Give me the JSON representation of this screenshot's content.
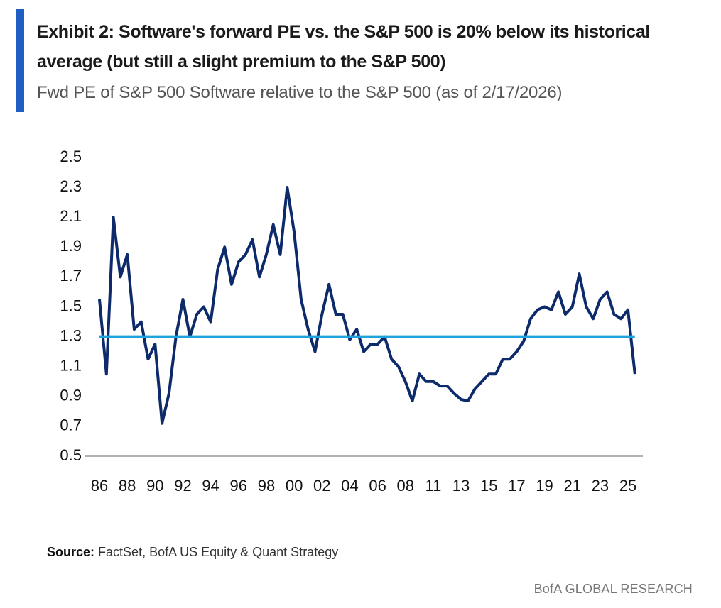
{
  "chart_data": {
    "type": "line",
    "title": "Exhibit 2: Software's forward PE vs. the S&P 500 is 20% below its historical average (but still a slight premium to the S&P 500)",
    "subtitle": "Fwd PE of S&P 500 Software relative to the S&P 500 (as of 2/17/2026)",
    "source_label": "Source:",
    "source": "FactSet, BofA US Equity & Quant Strategy",
    "branding": "BofA GLOBAL RESEARCH",
    "categories": [
      "86",
      null,
      null,
      null,
      "88",
      null,
      null,
      null,
      "90",
      null,
      null,
      null,
      "92",
      null,
      null,
      null,
      "94",
      null,
      null,
      null,
      "96",
      null,
      null,
      null,
      "98",
      null,
      null,
      null,
      "00",
      null,
      null,
      null,
      "02",
      null,
      null,
      null,
      "04",
      null,
      null,
      null,
      "06",
      null,
      null,
      null,
      "08",
      null,
      null,
      null,
      "11",
      null,
      null,
      null,
      "13",
      null,
      null,
      null,
      "15",
      null,
      null,
      null,
      "17",
      null,
      null,
      null,
      "19",
      null,
      null,
      null,
      "21",
      null,
      null,
      null,
      "23",
      null,
      null,
      null,
      "25",
      null
    ],
    "values": [
      1.55,
      1.05,
      2.1,
      1.7,
      1.85,
      1.35,
      1.4,
      1.15,
      1.25,
      0.72,
      0.92,
      1.3,
      1.55,
      1.3,
      1.45,
      1.5,
      1.4,
      1.75,
      1.9,
      1.65,
      1.8,
      1.85,
      1.95,
      1.7,
      1.85,
      2.05,
      1.85,
      2.3,
      2.0,
      1.55,
      1.35,
      1.2,
      1.45,
      1.65,
      1.45,
      1.45,
      1.28,
      1.35,
      1.2,
      1.25,
      1.25,
      1.3,
      1.15,
      1.1,
      1.0,
      0.87,
      1.05,
      1.0,
      1.0,
      0.97,
      0.97,
      0.92,
      0.88,
      0.87,
      0.95,
      1.0,
      1.05,
      1.05,
      1.15,
      1.15,
      1.2,
      1.27,
      1.42,
      1.48,
      1.5,
      1.48,
      1.6,
      1.45,
      1.5,
      1.72,
      1.5,
      1.42,
      1.55,
      1.6,
      1.45,
      1.42,
      1.48,
      1.05
    ],
    "color": "#0d2a6b",
    "reference_line": {
      "value": 1.3,
      "color": "#1fa3dc"
    },
    "ylim": [
      0.5,
      2.5
    ],
    "yticks": [
      0.5,
      0.7,
      0.9,
      1.1,
      1.3,
      1.5,
      1.7,
      1.9,
      2.1,
      2.3,
      2.5
    ]
  }
}
